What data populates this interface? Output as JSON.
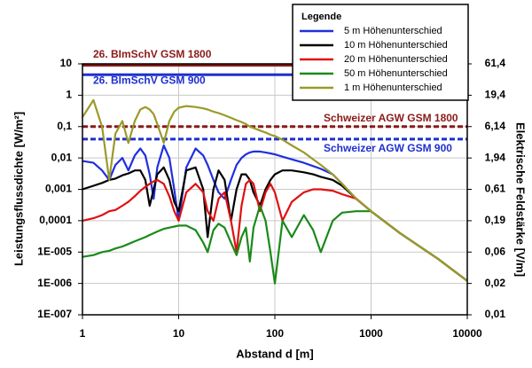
{
  "chart_data": {
    "type": "line",
    "xlabel": "Abstand d  [m]",
    "ylabel": "Leistungsflussdichte  [W/m²]",
    "y2label": "Elektrische Feldstärke [V/m]",
    "xscale": "log",
    "yscale": "log",
    "y2scale": "log",
    "grid": true,
    "legend": "top-right",
    "legend_title": "Legende",
    "xlim": [
      1,
      10000
    ],
    "xticks": [
      1,
      10,
      100,
      1000,
      10000
    ],
    "ylim": [
      1e-07,
      10
    ],
    "yticks": [
      {
        "value": 1e-07,
        "label": "1E-007"
      },
      {
        "value": 1e-06,
        "label": "1E-006"
      },
      {
        "value": 1e-05,
        "label": "1E-005"
      },
      {
        "value": 0.0001,
        "label": "0,0001"
      },
      {
        "value": 0.001,
        "label": "0,001"
      },
      {
        "value": 0.01,
        "label": "0,01"
      },
      {
        "value": 0.1,
        "label": "0,1"
      },
      1,
      10
    ],
    "y2lim": [
      0.00614,
      61.4
    ],
    "y2ticks": [
      {
        "value": 0.00614,
        "label": "0,01"
      },
      {
        "value": 0.0194,
        "label": "0,02"
      },
      {
        "value": 0.0614,
        "label": "0,06"
      },
      {
        "value": 0.194,
        "label": "0,19"
      },
      {
        "value": 0.614,
        "label": "0,61"
      },
      {
        "value": 1.94,
        "label": "1,94"
      },
      {
        "value": 6.14,
        "label": "6,14"
      },
      {
        "value": 19.4,
        "label": "19,4"
      },
      {
        "value": 61.4,
        "label": "61,4"
      }
    ],
    "reference_lines": [
      {
        "label": "26. BImSchV GSM 1800",
        "value": 9,
        "color": "#8b1a1a",
        "style": "solid"
      },
      {
        "label": "26. BImSchV GSM 900",
        "value": 4.5,
        "color": "#1f2fd0",
        "style": "solid"
      },
      {
        "label": "Schweizer AGW GSM 1800",
        "value": 0.1,
        "color": "#8b1a1a",
        "style": "dashed"
      },
      {
        "label": "Schweizer AGW GSM 900",
        "value": 0.04,
        "color": "#1f2fd0",
        "style": "dashed"
      }
    ],
    "x": [
      1,
      1.3,
      1.6,
      1.9,
      2.2,
      2.6,
      3,
      3.5,
      4,
      4.5,
      5,
      5.5,
      6,
      7,
      8,
      9,
      10,
      12,
      15,
      18,
      20,
      23,
      26,
      30,
      35,
      40,
      45,
      50,
      55,
      60,
      70,
      80,
      90,
      100,
      120,
      150,
      200,
      250,
      300,
      400,
      500,
      700,
      1000,
      2000,
      5000,
      10000
    ],
    "series": [
      {
        "name": "5 m Höhenunterschied",
        "color": "#1f2fe0",
        "values": [
          0.008,
          0.007,
          0.004,
          0.002,
          0.006,
          0.01,
          0.004,
          0.012,
          0.02,
          0.012,
          0.003,
          0.0005,
          0.005,
          0.025,
          0.01,
          0.001,
          0.0001,
          0.005,
          0.02,
          0.012,
          0.006,
          0.002,
          0.0008,
          0.0005,
          0.002,
          0.006,
          0.01,
          0.013,
          0.015,
          0.016,
          0.016,
          0.015,
          0.014,
          0.013,
          0.011,
          0.009,
          0.007,
          0.0055,
          0.0045,
          0.003,
          0.0015,
          0.0005,
          0.0002,
          4e-05,
          6e-06,
          1.2e-06
        ]
      },
      {
        "name": "10 m Höhenunterschied",
        "color": "#000000",
        "values": [
          0.001,
          0.0013,
          0.0016,
          0.002,
          0.0022,
          0.0028,
          0.0032,
          0.004,
          0.004,
          0.002,
          0.0003,
          0.001,
          0.003,
          0.005,
          0.002,
          0.0004,
          0.0002,
          0.004,
          0.005,
          0.001,
          3e-05,
          0.001,
          0.004,
          0.002,
          0.0001,
          0.001,
          0.003,
          0.003,
          0.002,
          0.0008,
          0.0003,
          0.001,
          0.002,
          0.003,
          0.004,
          0.004,
          0.0035,
          0.003,
          0.0025,
          0.002,
          0.0013,
          0.0005,
          0.0002,
          4e-05,
          6e-06,
          1.2e-06
        ]
      },
      {
        "name": "20 m Höhenunterschied",
        "color": "#e01010",
        "values": [
          0.0001,
          0.00012,
          0.00015,
          0.0002,
          0.00022,
          0.0003,
          0.0004,
          0.0006,
          0.0009,
          0.0012,
          0.0015,
          0.0018,
          0.002,
          0.0015,
          0.0006,
          0.0002,
          0.0001,
          0.0008,
          0.0015,
          0.0008,
          0.0002,
          0.0001,
          0.0005,
          0.0008,
          0.0001,
          1e-05,
          0.0003,
          0.0015,
          0.002,
          0.0015,
          0.0002,
          0.0008,
          0.0015,
          0.0008,
          0.0001,
          0.0004,
          0.0008,
          0.001,
          0.001,
          0.0009,
          0.0007,
          0.0005,
          0.0002,
          4e-05,
          6e-06,
          1.2e-06
        ]
      },
      {
        "name": "50 m Höhenunterschied",
        "color": "#1a8a1a",
        "values": [
          7e-06,
          8e-06,
          1e-05,
          1.1e-05,
          1.3e-05,
          1.5e-05,
          1.8e-05,
          2.2e-05,
          2.6e-05,
          3e-05,
          3.5e-05,
          4e-05,
          4.5e-05,
          5.5e-05,
          6e-05,
          6.5e-05,
          7e-05,
          7e-05,
          5e-05,
          2e-05,
          1e-05,
          5e-05,
          8e-05,
          6e-05,
          2e-05,
          8e-06,
          3e-05,
          6e-05,
          5e-06,
          6e-05,
          0.0003,
          0.0001,
          1e-05,
          1e-06,
          0.0001,
          3e-05,
          0.00015,
          5e-05,
          1e-05,
          0.0001,
          0.00018,
          0.0002,
          0.0002,
          4e-05,
          6e-06,
          1.2e-06
        ]
      },
      {
        "name": "1 m Höhenunterschied",
        "color": "#9a9a2a",
        "values": [
          0.2,
          0.7,
          0.1,
          0.002,
          0.06,
          0.15,
          0.03,
          0.15,
          0.35,
          0.42,
          0.35,
          0.25,
          0.12,
          0.03,
          0.15,
          0.3,
          0.4,
          0.45,
          0.42,
          0.38,
          0.35,
          0.3,
          0.27,
          0.23,
          0.19,
          0.16,
          0.14,
          0.12,
          0.1,
          0.09,
          0.075,
          0.065,
          0.055,
          0.05,
          0.038,
          0.025,
          0.015,
          0.009,
          0.006,
          0.003,
          0.0015,
          0.0005,
          0.0002,
          4e-05,
          6e-06,
          1.2e-06
        ]
      }
    ]
  }
}
